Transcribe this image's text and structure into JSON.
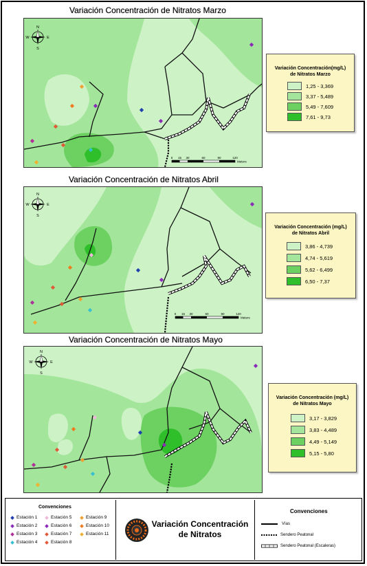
{
  "panels": [
    {
      "title": "Variación Concentración de Nitratos Marzo",
      "legend_title_1": "Variación Concentración(mg/L)",
      "legend_title_2": "de Nitratos Marzo",
      "classes": [
        {
          "label": "1,25 - 3,369",
          "color": "#ccf2c6"
        },
        {
          "label": "3,37 - 5,489",
          "color": "#a3e59a"
        },
        {
          "label": "5,49 - 7,609",
          "color": "#6dd162"
        },
        {
          "label": "7,61 - 9,73",
          "color": "#2fbf2a"
        }
      ],
      "scale": {
        "ticks": [
          "0",
          "15",
          "30",
          "60",
          "90",
          "120"
        ],
        "unit": "Meters"
      }
    },
    {
      "title": "Variación Concentración de Nitratos Abril",
      "legend_title_1": "Variación Concentración (mg/L)",
      "legend_title_2": "de Nitratos Abril",
      "classes": [
        {
          "label": "3,86 - 4,739",
          "color": "#ccf2c6"
        },
        {
          "label": "4,74 - 5,619",
          "color": "#a3e59a"
        },
        {
          "label": "5,62 - 6,499",
          "color": "#6dd162"
        },
        {
          "label": "6,50 - 7,37",
          "color": "#2fbf2a"
        }
      ],
      "scale": {
        "ticks": [
          "0",
          "15",
          "30",
          "60",
          "90",
          "120"
        ],
        "unit": "Meters"
      }
    },
    {
      "title": "Variación Concentración de Nitratos Mayo",
      "legend_title_1": "Variación Concentración (mg/L)",
      "legend_title_2": "de Nitratos Mayo",
      "classes": [
        {
          "label": "3,17 - 3,829",
          "color": "#ccf2c6"
        },
        {
          "label": "3,83 - 4,489",
          "color": "#a3e59a"
        },
        {
          "label": "4,49 - 5,149",
          "color": "#6dd162"
        },
        {
          "label": "5,15 - 5,80",
          "color": "#2fbf2a"
        }
      ]
    }
  ],
  "compass": {
    "n": "N",
    "s": "S",
    "e": "E",
    "w": "W"
  },
  "stations": {
    "heading": "Convenciones",
    "items": [
      {
        "label": "Estación 1",
        "color": "#1f3fb0"
      },
      {
        "label": "Estación 2",
        "color": "#8a2bb8"
      },
      {
        "label": "Estación 3",
        "color": "#b0309a"
      },
      {
        "label": "Estación 4",
        "color": "#39c0d0"
      },
      {
        "label": "Estación 5",
        "color": "#f0b8d8"
      },
      {
        "label": "Estación 6",
        "color": "#8a2bb8"
      },
      {
        "label": "Estación 7",
        "color": "#e05a3a"
      },
      {
        "label": "Estación 8",
        "color": "#e05a3a"
      },
      {
        "label": "Estación 9",
        "color": "#f0a030"
      },
      {
        "label": "Estación 10",
        "color": "#f07a20"
      },
      {
        "label": "Estación 11",
        "color": "#f0b030"
      }
    ]
  },
  "main_title_1": "Variación Concentración",
  "main_title_2": "de Nitratos",
  "lines": {
    "heading": "Convenciones",
    "items": [
      {
        "label": "Vías"
      },
      {
        "label": "Sendero Peatonal"
      },
      {
        "label": "Sendero Peatonal (Escaleras)"
      }
    ]
  }
}
